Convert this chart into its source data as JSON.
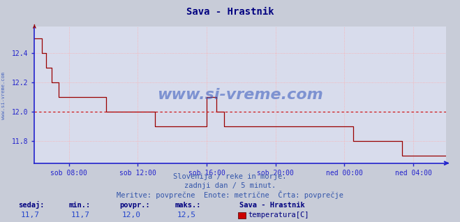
{
  "title": "Sava - Hrastnik",
  "title_color": "#000080",
  "outer_bg_color": "#c8ccd8",
  "plot_bg_color": "#d8dcec",
  "line_color": "#990000",
  "axis_color": "#2222cc",
  "grid_color": "#ffaaaa",
  "avg_line_color": "#cc0000",
  "avg_value": 12.0,
  "ylim_min": 11.65,
  "ylim_max": 12.58,
  "yticks": [
    11.8,
    12.0,
    12.2,
    12.4
  ],
  "xtick_labels": [
    "sob 08:00",
    "sob 12:00",
    "sob 16:00",
    "sob 20:00",
    "ned 00:00",
    "ned 04:00"
  ],
  "xlabel_color": "#2244aa",
  "watermark": "www.si-vreme.com",
  "watermark_color": "#3355bb",
  "sub_text1": "Slovenija / reke in morje.",
  "sub_text2": "zadnji dan / 5 minut.",
  "sub_text3": "Meritve: povprečne  Enote: metrične  Črta: povprečje",
  "sub_text_color": "#3355aa",
  "footer_label1": "sedaj:",
  "footer_label2": "min.:",
  "footer_label3": "povpr.:",
  "footer_label4": "maks.:",
  "footer_val1": "11,7",
  "footer_val2": "11,7",
  "footer_val3": "12,0",
  "footer_val4": "12,5",
  "footer_station": "Sava - Hrastnik",
  "footer_measure": "temperatura[C]",
  "footer_label_color": "#000080",
  "footer_val_color": "#2244cc",
  "side_label": "www.si-vreme.com",
  "side_label_color": "#3355bb",
  "n_points": 288,
  "x_tick_positions": [
    24,
    72,
    120,
    168,
    216,
    264
  ],
  "temp_data": [
    12.5,
    12.5,
    12.5,
    12.5,
    12.5,
    12.4,
    12.4,
    12.4,
    12.3,
    12.3,
    12.3,
    12.3,
    12.2,
    12.2,
    12.2,
    12.2,
    12.2,
    12.1,
    12.1,
    12.1,
    12.1,
    12.1,
    12.1,
    12.1,
    12.1,
    12.1,
    12.1,
    12.1,
    12.1,
    12.1,
    12.1,
    12.1,
    12.1,
    12.1,
    12.1,
    12.1,
    12.1,
    12.1,
    12.1,
    12.1,
    12.1,
    12.1,
    12.1,
    12.1,
    12.1,
    12.1,
    12.1,
    12.1,
    12.1,
    12.1,
    12.0,
    12.0,
    12.0,
    12.0,
    12.0,
    12.0,
    12.0,
    12.0,
    12.0,
    12.0,
    12.0,
    12.0,
    12.0,
    12.0,
    12.0,
    12.0,
    12.0,
    12.0,
    12.0,
    12.0,
    12.0,
    12.0,
    12.0,
    12.0,
    12.0,
    12.0,
    12.0,
    12.0,
    12.0,
    12.0,
    12.0,
    12.0,
    12.0,
    12.0,
    11.9,
    11.9,
    11.9,
    11.9,
    11.9,
    11.9,
    11.9,
    11.9,
    11.9,
    11.9,
    11.9,
    11.9,
    11.9,
    11.9,
    11.9,
    11.9,
    11.9,
    11.9,
    11.9,
    11.9,
    11.9,
    11.9,
    11.9,
    11.9,
    11.9,
    11.9,
    11.9,
    11.9,
    11.9,
    11.9,
    11.9,
    11.9,
    11.9,
    11.9,
    11.9,
    11.9,
    12.1,
    12.1,
    12.1,
    12.1,
    12.1,
    12.1,
    12.1,
    12.0,
    12.0,
    12.0,
    12.0,
    12.0,
    11.9,
    11.9,
    11.9,
    11.9,
    11.9,
    11.9,
    11.9,
    11.9,
    11.9,
    11.9,
    11.9,
    11.9,
    11.9,
    11.9,
    11.9,
    11.9,
    11.9,
    11.9,
    11.9,
    11.9,
    11.9,
    11.9,
    11.9,
    11.9,
    11.9,
    11.9,
    11.9,
    11.9,
    11.9,
    11.9,
    11.9,
    11.9,
    11.9,
    11.9,
    11.9,
    11.9,
    11.9,
    11.9,
    11.9,
    11.9,
    11.9,
    11.9,
    11.9,
    11.9,
    11.9,
    11.9,
    11.9,
    11.9,
    11.9,
    11.9,
    11.9,
    11.9,
    11.9,
    11.9,
    11.9,
    11.9,
    11.9,
    11.9,
    11.9,
    11.9,
    11.9,
    11.9,
    11.9,
    11.9,
    11.9,
    11.9,
    11.9,
    11.9,
    11.9,
    11.9,
    11.9,
    11.9,
    11.9,
    11.9,
    11.9,
    11.9,
    11.9,
    11.9,
    11.9,
    11.9,
    11.9,
    11.9,
    11.9,
    11.9,
    11.9,
    11.9,
    11.9,
    11.9,
    11.9,
    11.9,
    11.8,
    11.8,
    11.8,
    11.8,
    11.8,
    11.8,
    11.8,
    11.8,
    11.8,
    11.8,
    11.8,
    11.8,
    11.8,
    11.8,
    11.8,
    11.8,
    11.8,
    11.8,
    11.8,
    11.8,
    11.8,
    11.8,
    11.8,
    11.8,
    11.8,
    11.8,
    11.8,
    11.8,
    11.8,
    11.8,
    11.8,
    11.8,
    11.8,
    11.8,
    11.7,
    11.7,
    11.7,
    11.7,
    11.7,
    11.7,
    11.7,
    11.7,
    11.7,
    11.7,
    11.7,
    11.7,
    11.7,
    11.7,
    11.7,
    11.7,
    11.7,
    11.7,
    11.7,
    11.7,
    11.7,
    11.7,
    11.7,
    11.7,
    11.7,
    11.7,
    11.7,
    11.7,
    11.7,
    11.7,
    11.7,
    11.7
  ]
}
